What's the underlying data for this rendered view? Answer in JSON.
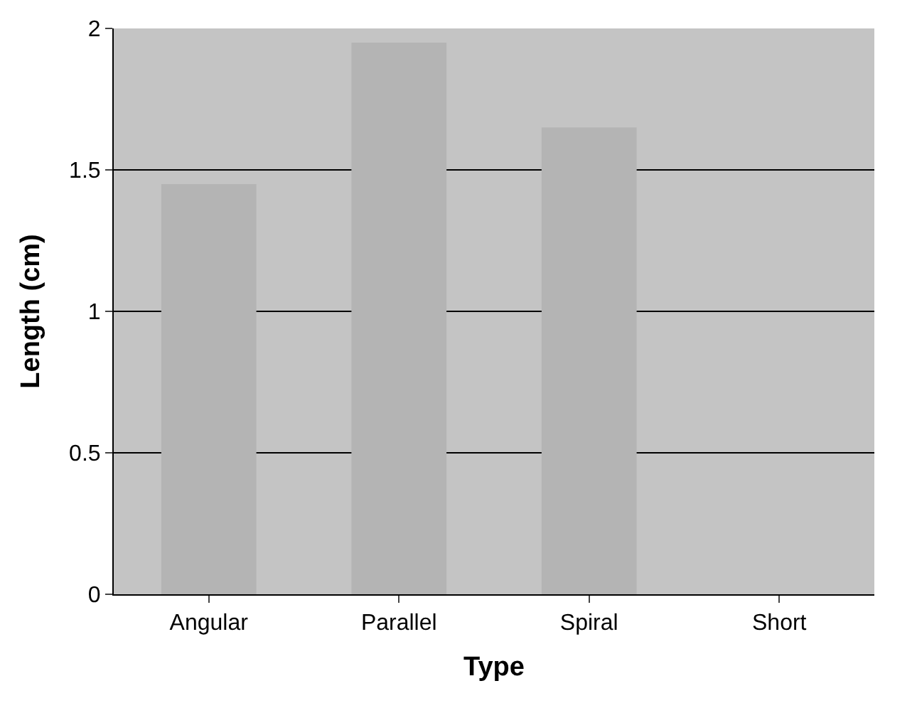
{
  "chart_data": {
    "type": "bar",
    "xlabel": "Type",
    "ylabel": "Length (cm)",
    "categories": [
      "Angular",
      "Parallel",
      "Spiral",
      "Short"
    ],
    "values": [
      1.45,
      1.95,
      1.65,
      0
    ],
    "color": "#b4b4b4",
    "ylim": [
      0,
      2
    ],
    "yticks": [
      0,
      0.5,
      1,
      1.5,
      2
    ],
    "grid": "y"
  }
}
